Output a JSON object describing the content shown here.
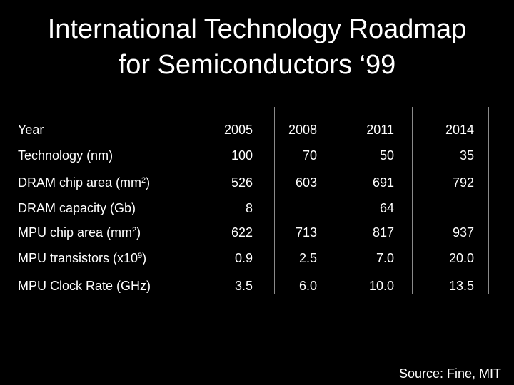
{
  "title": {
    "line1": "International Technology Roadmap",
    "line2": "for Semiconductors ‘99"
  },
  "table": {
    "header_label": "Year",
    "years": [
      "2005",
      "2008",
      "2011",
      "2014"
    ],
    "rows": [
      {
        "label": "Technology (nm)",
        "values": [
          "100",
          "70",
          "50",
          "35"
        ]
      },
      {
        "label": "DRAM chip area (mm",
        "sup": "2",
        "suffix": ")",
        "values": [
          "526",
          "603",
          "691",
          "792"
        ]
      },
      {
        "label": "DRAM capacity (Gb)",
        "values": [
          "8",
          "",
          "64",
          ""
        ]
      },
      {
        "label": "MPU chip area (mm",
        "sup": "2",
        "suffix": ")",
        "values": [
          "622",
          "713",
          "817",
          "937"
        ]
      },
      {
        "label": "MPU transistors (x10",
        "sup": "9",
        "suffix": ")",
        "values": [
          "0.9",
          "2.5",
          "7.0",
          "20.0"
        ]
      },
      {
        "label": "MPU Clock Rate (GHz)",
        "values": [
          "3.5",
          "6.0",
          "10.0",
          "13.5"
        ]
      }
    ]
  },
  "source": "Source: Fine, MIT"
}
